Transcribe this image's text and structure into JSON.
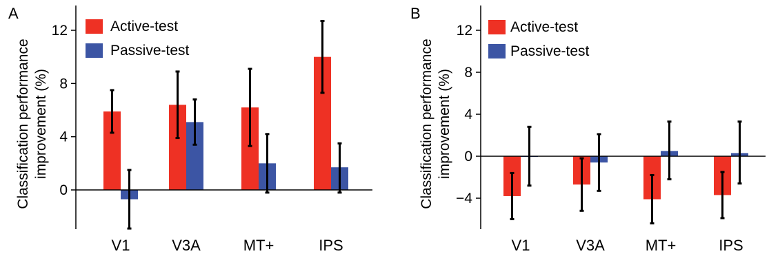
{
  "chart_data": [
    {
      "type": "bar",
      "panel": "A",
      "title": "",
      "xlabel": "",
      "ylabel": "Classification performance improvement (%)",
      "ylabel_lines": [
        "Classification performance",
        "improvement (%)"
      ],
      "ylim": [
        -3,
        12.8
      ],
      "yticks": [
        0,
        4,
        8,
        12
      ],
      "ytick_labels": [
        "0",
        "4",
        "8",
        "12"
      ],
      "categories": [
        "V1",
        "V3A",
        "MT+",
        "IPS"
      ],
      "grid": false,
      "legend_position": "top-left",
      "series": [
        {
          "name": "Active-test",
          "color": "#ee3124",
          "values": [
            5.9,
            6.4,
            6.2,
            10.0
          ],
          "error_low": [
            4.3,
            3.9,
            3.3,
            7.3
          ],
          "error_high": [
            7.5,
            8.9,
            9.1,
            12.7
          ]
        },
        {
          "name": "Passive-test",
          "color": "#3c55a4",
          "values": [
            -0.7,
            5.1,
            2.0,
            1.7
          ],
          "error_low": [
            -2.9,
            3.4,
            -0.2,
            -0.2
          ],
          "error_high": [
            1.5,
            6.8,
            4.2,
            3.5
          ]
        }
      ]
    },
    {
      "type": "bar",
      "panel": "B",
      "title": "",
      "xlabel": "",
      "ylabel": "Classification performance improvement (%)",
      "ylabel_lines": [
        "Classification performance",
        "improvement (%)"
      ],
      "ylim": [
        -6.8,
        13
      ],
      "yticks": [
        -4,
        0,
        4,
        8,
        12
      ],
      "ytick_labels": [
        "−4",
        "0",
        "4",
        "8",
        "12"
      ],
      "categories": [
        "V1",
        "V3A",
        "MT+",
        "IPS"
      ],
      "grid": false,
      "legend_position": "top-left",
      "series": [
        {
          "name": "Active-test",
          "color": "#ee3124",
          "values": [
            -3.8,
            -2.7,
            -4.1,
            -3.7
          ],
          "error_low": [
            -6.0,
            -5.2,
            -6.4,
            -5.9
          ],
          "error_high": [
            -1.6,
            -0.2,
            -1.8,
            -1.5
          ]
        },
        {
          "name": "Passive-test",
          "color": "#3c55a4",
          "values": [
            0.0,
            -0.6,
            0.5,
            0.3
          ],
          "error_low": [
            -2.8,
            -3.3,
            -2.2,
            -2.6
          ],
          "error_high": [
            2.8,
            2.1,
            3.3,
            3.3
          ]
        }
      ]
    }
  ]
}
